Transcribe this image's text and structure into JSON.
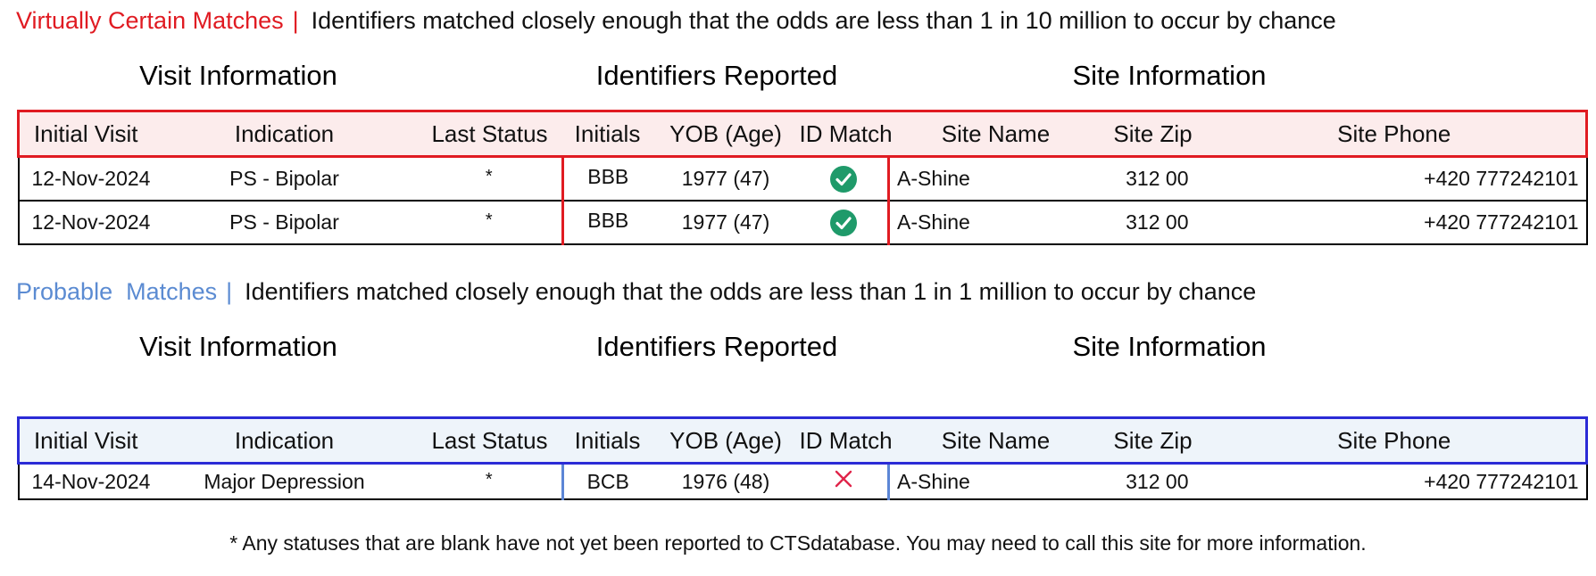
{
  "colors": {
    "certain": "#e01b22",
    "probable": "#5b8bd2",
    "check": "#1f9a6a",
    "cross": "#e0254a"
  },
  "virtually_certain": {
    "label": "Virtually Certain Matches",
    "separator": "|",
    "description": "Identifiers matched closely enough that the odds are less than 1 in 10 million to occur by chance",
    "groups": {
      "visit": "Visit Information",
      "identifiers": "Identifiers Reported",
      "site": "Site Information"
    },
    "columns": [
      "Initial Visit",
      "Indication",
      "Last Status",
      "Initials",
      "YOB (Age)",
      "ID Match",
      "Site Name",
      "Site Zip",
      "Site Phone"
    ],
    "rows": [
      {
        "initial_visit": "12-Nov-2024",
        "indication": "PS - Bipolar",
        "last_status": "*",
        "initials": "BBB",
        "yob_age": "1977 (47)",
        "id_match": "check-icon",
        "site_name": "A-Shine",
        "site_zip": "312 00",
        "site_phone": "+420 777242101"
      },
      {
        "initial_visit": "12-Nov-2024",
        "indication": "PS - Bipolar",
        "last_status": "*",
        "initials": "BBB",
        "yob_age": "1977 (47)",
        "id_match": "check-icon",
        "site_name": "A-Shine",
        "site_zip": "312 00",
        "site_phone": "+420 777242101"
      }
    ]
  },
  "probable": {
    "label": "Probable  Matches",
    "separator": "|",
    "description": "Identifiers matched closely enough that the odds are less than 1 in 1 million to occur by chance",
    "groups": {
      "visit": "Visit Information",
      "identifiers": "Identifiers Reported",
      "site": "Site Information"
    },
    "columns": [
      "Initial Visit",
      "Indication",
      "Last Status",
      "Initials",
      "YOB (Age)",
      "ID Match",
      "Site Name",
      "Site Zip",
      "Site Phone"
    ],
    "rows": [
      {
        "initial_visit": "14-Nov-2024",
        "indication": "Major Depression",
        "last_status": "*",
        "initials": "BCB",
        "yob_age": "1976 (48)",
        "id_match": "x-icon",
        "site_name": "A-Shine",
        "site_zip": "312 00",
        "site_phone": "+420 777242101"
      }
    ]
  },
  "footnote": "* Any statuses that are blank have not yet been reported to CTSdatabase. You may need to call this site for more information."
}
